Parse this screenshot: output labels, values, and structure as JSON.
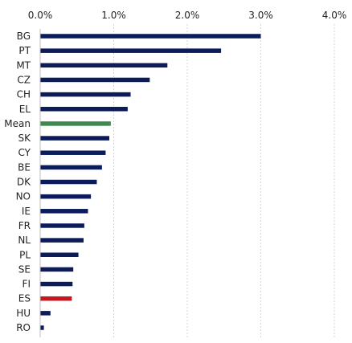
{
  "chart_data": {
    "type": "bar",
    "orientation": "horizontal",
    "title": "",
    "xlabel": "",
    "ylabel": "",
    "xlim": [
      0,
      4
    ],
    "x_ticks": [
      0,
      1,
      2,
      3,
      4
    ],
    "x_tick_labels": [
      "0.0%",
      "1.0%",
      "2.0%",
      "3.0%",
      "4.0%"
    ],
    "x_unit": "%",
    "axis_position": "top",
    "grid": "vertical",
    "legend": "none",
    "categories": [
      "BG",
      "PT",
      "MT",
      "CZ",
      "CH",
      "EL",
      "Mean",
      "SK",
      "CY",
      "BE",
      "DK",
      "NO",
      "IE",
      "FR",
      "NL",
      "PL",
      "SE",
      "FI",
      "ES",
      "HU",
      "RO"
    ],
    "values": [
      3.0,
      2.46,
      1.73,
      1.49,
      1.23,
      1.19,
      0.96,
      0.94,
      0.89,
      0.84,
      0.77,
      0.69,
      0.65,
      0.6,
      0.59,
      0.52,
      0.45,
      0.44,
      0.43,
      0.14,
      0.05
    ],
    "colors": {
      "default": "#0c1b5a",
      "Mean": "#3c8a4e",
      "ES": "#c8161d"
    }
  }
}
